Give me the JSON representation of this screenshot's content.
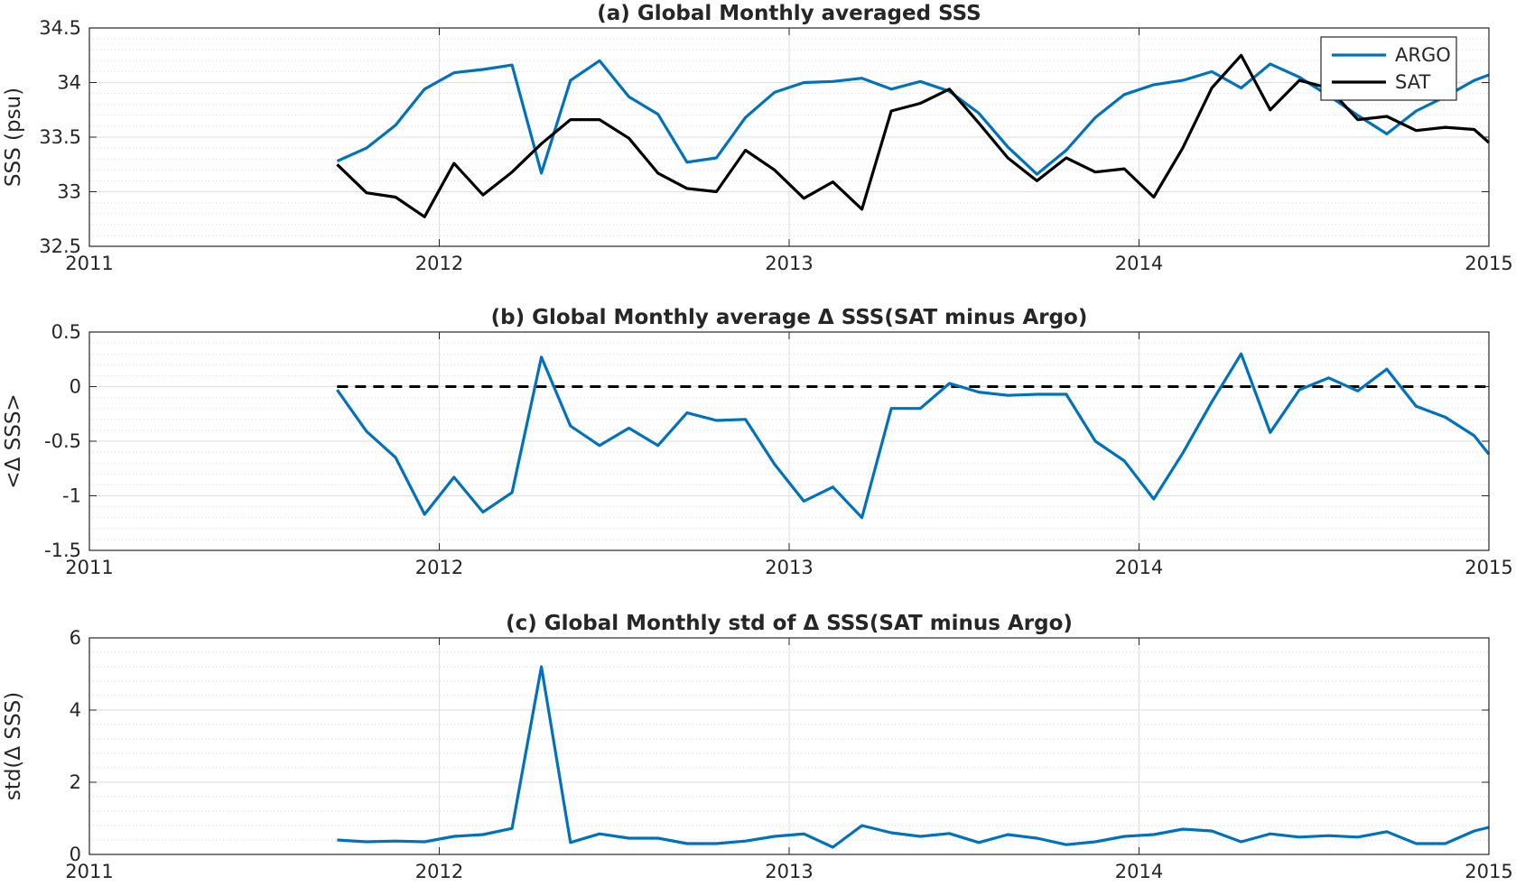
{
  "chart_data": [
    {
      "type": "line",
      "title": "(a) Global Monthly averaged SSS",
      "xlabel": "",
      "ylabel": "SSS (psu)",
      "xlim": [
        2011,
        2015
      ],
      "ylim": [
        32.5,
        34.5
      ],
      "xticks": [
        "2011",
        "2012",
        "2013",
        "2014",
        "2015"
      ],
      "yticks": [
        "32.5",
        "33",
        "33.5",
        "34",
        "34.5"
      ],
      "grid": true,
      "legend": "top-right",
      "series": [
        {
          "name": "ARGO",
          "color": "#0072BD",
          "x": [
            2011.708,
            2011.792,
            2011.875,
            2011.958,
            2012.042,
            2012.125,
            2012.208,
            2012.292,
            2012.375,
            2012.458,
            2012.542,
            2012.625,
            2012.708,
            2012.792,
            2012.875,
            2012.958,
            2013.042,
            2013.125,
            2013.208,
            2013.292,
            2013.375,
            2013.458,
            2013.542,
            2013.625,
            2013.708,
            2013.792,
            2013.875,
            2013.958,
            2014.042,
            2014.125,
            2014.208,
            2014.292,
            2014.375,
            2014.458,
            2014.542,
            2014.625,
            2014.708,
            2014.792,
            2014.875,
            2014.958,
            2015.0
          ],
          "y": [
            33.28,
            33.4,
            33.61,
            33.94,
            34.09,
            34.12,
            34.16,
            33.17,
            34.02,
            34.2,
            33.87,
            33.71,
            33.27,
            33.31,
            33.68,
            33.91,
            34.0,
            34.01,
            34.04,
            33.94,
            34.01,
            33.92,
            33.72,
            33.41,
            33.16,
            33.38,
            33.68,
            33.89,
            33.98,
            34.02,
            34.1,
            33.95,
            34.17,
            34.05,
            33.88,
            33.7,
            33.53,
            33.74,
            33.87,
            34.02,
            34.07
          ]
        },
        {
          "name": "SAT",
          "color": "#000000",
          "x": [
            2011.708,
            2011.792,
            2011.875,
            2011.958,
            2012.042,
            2012.125,
            2012.208,
            2012.292,
            2012.375,
            2012.458,
            2012.542,
            2012.625,
            2012.708,
            2012.792,
            2012.875,
            2012.958,
            2013.042,
            2013.125,
            2013.208,
            2013.292,
            2013.375,
            2013.458,
            2013.542,
            2013.625,
            2013.708,
            2013.792,
            2013.875,
            2013.958,
            2014.042,
            2014.125,
            2014.208,
            2014.292,
            2014.375,
            2014.458,
            2014.542,
            2014.625,
            2014.708,
            2014.792,
            2014.875,
            2014.958,
            2015.0
          ],
          "y": [
            33.25,
            32.99,
            32.95,
            32.77,
            33.26,
            32.97,
            33.18,
            33.44,
            33.66,
            33.66,
            33.49,
            33.17,
            33.03,
            33.0,
            33.38,
            33.2,
            32.94,
            33.09,
            32.84,
            33.74,
            33.81,
            33.94,
            33.63,
            33.31,
            33.1,
            33.31,
            33.18,
            33.21,
            32.95,
            33.4,
            33.95,
            34.25,
            33.75,
            34.02,
            33.95,
            33.66,
            33.69,
            33.56,
            33.59,
            33.57,
            33.45
          ]
        }
      ]
    },
    {
      "type": "line",
      "title": "(b) Global Monthly average Δ SSS(SAT minus Argo)",
      "xlabel": "",
      "ylabel": "<Δ SSS>",
      "xlim": [
        2011,
        2015
      ],
      "ylim": [
        -1.5,
        0.5
      ],
      "xticks": [
        "2011",
        "2012",
        "2013",
        "2014",
        "2015"
      ],
      "yticks": [
        "-1.5",
        "-1",
        "-0.5",
        "0",
        "0.5"
      ],
      "grid": true,
      "reference_line": {
        "y": 0,
        "x_start": 2011.708,
        "x_end": 2015.0,
        "style": "dashed",
        "color": "#000000"
      },
      "series": [
        {
          "color": "#0072BD",
          "x": [
            2011.708,
            2011.792,
            2011.875,
            2011.958,
            2012.042,
            2012.125,
            2012.208,
            2012.292,
            2012.375,
            2012.458,
            2012.542,
            2012.625,
            2012.708,
            2012.792,
            2012.875,
            2012.958,
            2013.042,
            2013.125,
            2013.208,
            2013.292,
            2013.375,
            2013.458,
            2013.542,
            2013.625,
            2013.708,
            2013.792,
            2013.875,
            2013.958,
            2014.042,
            2014.125,
            2014.208,
            2014.292,
            2014.375,
            2014.458,
            2014.542,
            2014.625,
            2014.708,
            2014.792,
            2014.875,
            2014.958,
            2015.0
          ],
          "y": [
            -0.03,
            -0.41,
            -0.65,
            -1.17,
            -0.83,
            -1.15,
            -0.97,
            0.27,
            -0.36,
            -0.54,
            -0.38,
            -0.54,
            -0.24,
            -0.31,
            -0.3,
            -0.71,
            -1.05,
            -0.92,
            -1.2,
            -0.2,
            -0.2,
            0.03,
            -0.05,
            -0.08,
            -0.07,
            -0.07,
            -0.5,
            -0.68,
            -1.03,
            -0.61,
            -0.14,
            0.3,
            -0.42,
            -0.03,
            0.08,
            -0.04,
            0.16,
            -0.18,
            -0.28,
            -0.45,
            -0.62
          ]
        }
      ]
    },
    {
      "type": "line",
      "title": "(c) Global Monthly std of Δ SSS(SAT minus Argo)",
      "xlabel": "",
      "ylabel": "std(Δ SSS)",
      "xlim": [
        2011,
        2015
      ],
      "ylim": [
        0,
        6
      ],
      "xticks": [
        "2011",
        "2012",
        "2013",
        "2014",
        "2015"
      ],
      "yticks": [
        "0",
        "2",
        "4",
        "6"
      ],
      "grid": true,
      "series": [
        {
          "color": "#0072BD",
          "x": [
            2011.708,
            2011.792,
            2011.875,
            2011.958,
            2012.042,
            2012.125,
            2012.208,
            2012.292,
            2012.375,
            2012.458,
            2012.542,
            2012.625,
            2012.708,
            2012.792,
            2012.875,
            2012.958,
            2013.042,
            2013.125,
            2013.208,
            2013.292,
            2013.375,
            2013.458,
            2013.542,
            2013.625,
            2013.708,
            2013.792,
            2013.875,
            2013.958,
            2014.042,
            2014.125,
            2014.208,
            2014.292,
            2014.375,
            2014.458,
            2014.542,
            2014.625,
            2014.708,
            2014.792,
            2014.875,
            2014.958,
            2015.0
          ],
          "y": [
            0.4,
            0.35,
            0.37,
            0.35,
            0.5,
            0.55,
            0.72,
            5.2,
            0.33,
            0.57,
            0.45,
            0.45,
            0.3,
            0.3,
            0.37,
            0.5,
            0.57,
            0.2,
            0.8,
            0.6,
            0.5,
            0.58,
            0.33,
            0.55,
            0.45,
            0.27,
            0.35,
            0.5,
            0.55,
            0.7,
            0.65,
            0.35,
            0.57,
            0.48,
            0.52,
            0.48,
            0.63,
            0.3,
            0.3,
            0.65,
            0.75
          ]
        }
      ]
    }
  ]
}
